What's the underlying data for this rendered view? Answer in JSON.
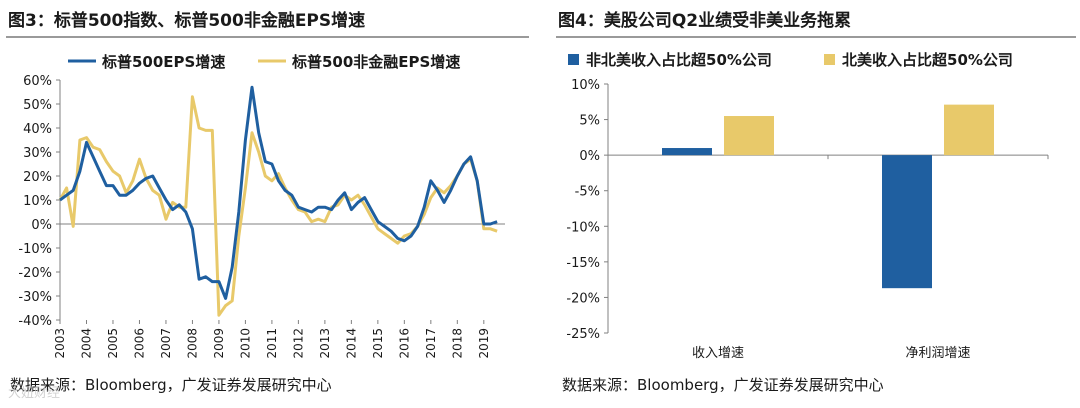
{
  "chart_data": [
    {
      "type": "line",
      "figure_label": "图3：",
      "title": "标普500指数、标普500非金融EPS增速",
      "xlabel": "",
      "ylabel": "",
      "ylim": [
        -0.4,
        0.6
      ],
      "yticks": [
        0.6,
        0.5,
        0.4,
        0.3,
        0.2,
        0.1,
        0,
        -0.1,
        -0.2,
        -0.3,
        -0.4
      ],
      "ytick_labels": [
        "60%",
        "50%",
        "40%",
        "30%",
        "20%",
        "10%",
        "0%",
        "-10%",
        "-20%",
        "-30%",
        "-40%"
      ],
      "xlim": [
        2003,
        2019.8
      ],
      "x_tick_labels": [
        "2003",
        "2004",
        "2005",
        "2006",
        "2007",
        "2008",
        "2009",
        "2010",
        "2011",
        "2012",
        "2013",
        "2014",
        "2015",
        "2016",
        "2017",
        "2018",
        "2019"
      ],
      "legend_position": "top-left",
      "series": [
        {
          "name": "标普500EPS增速",
          "color": "#1f5fa0",
          "x": [
            2003.0,
            2003.25,
            2003.5,
            2003.75,
            2004.0,
            2004.25,
            2004.5,
            2004.75,
            2005.0,
            2005.25,
            2005.5,
            2005.75,
            2006.0,
            2006.25,
            2006.5,
            2006.75,
            2007.0,
            2007.25,
            2007.5,
            2007.75,
            2008.0,
            2008.25,
            2008.5,
            2008.75,
            2009.0,
            2009.25,
            2009.5,
            2009.75,
            2010.0,
            2010.25,
            2010.5,
            2010.75,
            2011.0,
            2011.25,
            2011.5,
            2011.75,
            2012.0,
            2012.25,
            2012.5,
            2012.75,
            2013.0,
            2013.25,
            2013.5,
            2013.75,
            2014.0,
            2014.25,
            2014.5,
            2014.75,
            2015.0,
            2015.25,
            2015.5,
            2015.75,
            2016.0,
            2016.25,
            2016.5,
            2016.75,
            2017.0,
            2017.25,
            2017.5,
            2017.75,
            2018.0,
            2018.25,
            2018.5,
            2018.75,
            2019.0,
            2019.25,
            2019.5
          ],
          "values": [
            0.1,
            0.12,
            0.14,
            0.22,
            0.34,
            0.28,
            0.22,
            0.16,
            0.16,
            0.12,
            0.12,
            0.14,
            0.17,
            0.19,
            0.2,
            0.15,
            0.1,
            0.06,
            0.08,
            0.05,
            -0.02,
            -0.23,
            -0.22,
            -0.24,
            -0.24,
            -0.31,
            -0.18,
            0.05,
            0.35,
            0.57,
            0.38,
            0.26,
            0.25,
            0.18,
            0.14,
            0.12,
            0.07,
            0.06,
            0.05,
            0.07,
            0.07,
            0.06,
            0.1,
            0.13,
            0.06,
            0.09,
            0.11,
            0.06,
            0.01,
            -0.01,
            -0.03,
            -0.06,
            -0.07,
            -0.05,
            -0.01,
            0.07,
            0.18,
            0.14,
            0.09,
            0.14,
            0.2,
            0.25,
            0.28,
            0.18,
            0.0,
            0.0,
            0.01
          ]
        },
        {
          "name": "标普500非金融EPS增速",
          "color": "#e8c96a",
          "x": [
            2003.0,
            2003.25,
            2003.5,
            2003.75,
            2004.0,
            2004.25,
            2004.5,
            2004.75,
            2005.0,
            2005.25,
            2005.5,
            2005.75,
            2006.0,
            2006.25,
            2006.5,
            2006.75,
            2007.0,
            2007.25,
            2007.5,
            2007.75,
            2008.0,
            2008.25,
            2008.5,
            2008.75,
            2009.0,
            2009.25,
            2009.5,
            2009.75,
            2010.0,
            2010.25,
            2010.5,
            2010.75,
            2011.0,
            2011.25,
            2011.5,
            2011.75,
            2012.0,
            2012.25,
            2012.5,
            2012.75,
            2013.0,
            2013.25,
            2013.5,
            2013.75,
            2014.0,
            2014.25,
            2014.5,
            2014.75,
            2015.0,
            2015.25,
            2015.5,
            2015.75,
            2016.0,
            2016.25,
            2016.5,
            2016.75,
            2017.0,
            2017.25,
            2017.5,
            2017.75,
            2018.0,
            2018.25,
            2018.5,
            2018.75,
            2019.0,
            2019.25,
            2019.5
          ],
          "values": [
            0.1,
            0.15,
            -0.01,
            0.35,
            0.36,
            0.32,
            0.31,
            0.26,
            0.22,
            0.2,
            0.13,
            0.18,
            0.27,
            0.19,
            0.14,
            0.12,
            0.02,
            0.09,
            0.07,
            0.07,
            0.53,
            0.4,
            0.39,
            0.39,
            -0.38,
            -0.34,
            -0.32,
            -0.05,
            0.15,
            0.38,
            0.3,
            0.2,
            0.18,
            0.21,
            0.15,
            0.1,
            0.06,
            0.05,
            0.01,
            0.02,
            0.01,
            0.07,
            0.08,
            0.12,
            0.1,
            0.12,
            0.08,
            0.03,
            -0.02,
            -0.04,
            -0.06,
            -0.08,
            -0.05,
            -0.04,
            -0.01,
            0.04,
            0.11,
            0.15,
            0.13,
            0.16,
            0.2,
            0.25,
            0.27,
            0.18,
            -0.02,
            -0.02,
            -0.03
          ]
        }
      ],
      "source": "数据来源：Bloomberg，广发证券发展研究中心"
    },
    {
      "type": "bar",
      "figure_label": "图4：",
      "title": "美股公司Q2业绩受非美业务拖累",
      "categories": [
        "收入增速",
        "净利润增速"
      ],
      "ylim": [
        -0.25,
        0.1
      ],
      "yticks": [
        0.1,
        0.05,
        0,
        -0.05,
        -0.1,
        -0.15,
        -0.2,
        -0.25
      ],
      "ytick_labels": [
        "10%",
        "5%",
        "0%",
        "-5%",
        "-10%",
        "-15%",
        "-20%",
        "-25%"
      ],
      "legend_position": "top",
      "series": [
        {
          "name": "非北美收入占比超50%公司",
          "color": "#1f5fa0",
          "values": [
            0.01,
            -0.187
          ]
        },
        {
          "name": "北美收入占比超50%公司",
          "color": "#e8c96a",
          "values": [
            0.055,
            0.071
          ]
        }
      ],
      "source": "数据来源：Bloomberg，广发证券发展研究中心"
    }
  ],
  "watermark": "大妞财经"
}
